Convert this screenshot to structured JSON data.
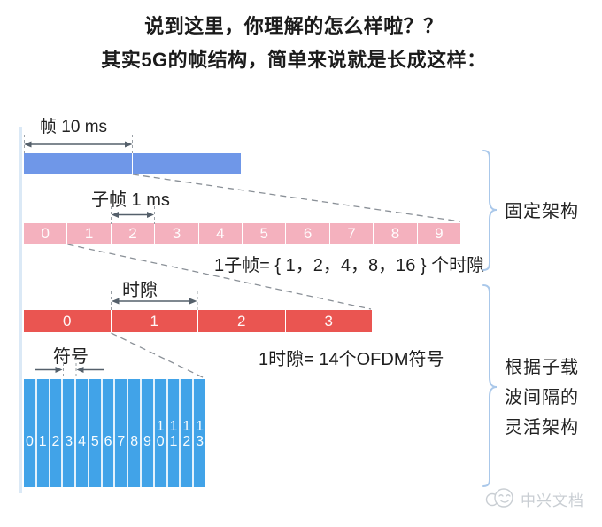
{
  "title": {
    "line1": "说到这里，你理解的怎么样啦？？",
    "line2": "其实5G的帧结构，简单来说就是长成这样："
  },
  "diagram": {
    "frame": {
      "label": "帧 10 ms",
      "segments": [
        "",
        ""
      ]
    },
    "subframe": {
      "label": "子帧 1 ms",
      "segments": [
        "0",
        "1",
        "2",
        "3",
        "4",
        "5",
        "6",
        "7",
        "8",
        "9"
      ],
      "equation": "1子帧= { 1，2，4，8，16 } 个时隙"
    },
    "slot": {
      "label": "时隙",
      "segments": [
        "0",
        "1",
        "2",
        "3"
      ],
      "equation": "1时隙= 14个OFDM符号"
    },
    "symbol": {
      "label": "符号",
      "segments": [
        "0",
        "1",
        "2",
        "3",
        "4",
        "5",
        "6",
        "7",
        "8",
        "9",
        "10",
        "11",
        "12",
        "13"
      ]
    },
    "annotations": {
      "fixed": "固定架构",
      "flexible_lines": [
        "根据子载",
        "波间隔的",
        "灵活架构"
      ]
    }
  },
  "watermark": {
    "text": "中兴文档",
    "icon": "smiley-chat-bubble-icon"
  },
  "colors": {
    "frame_bar": "#6f97e8",
    "subframe_bar": "#f4b1be",
    "slot_bar": "#ea5551",
    "symbol_bar": "#41a3e8",
    "brace": "#aac8ea",
    "guide_line": "#dbe9f6",
    "dashed_line": "#8a9097",
    "arrow": "#55606b",
    "watermark": "#c9ced3"
  }
}
